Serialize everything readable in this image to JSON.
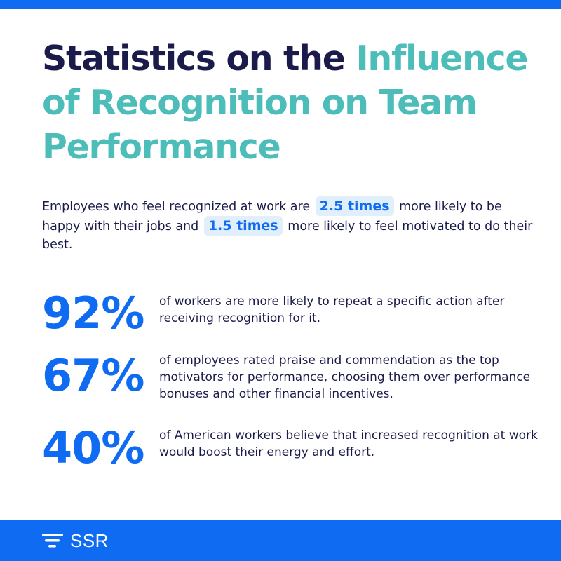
{
  "title": {
    "part1": "Statistics on the ",
    "part2": "Influence of Recognition on Team Performance"
  },
  "intro": {
    "t1": "Employees who feel recognized at work are ",
    "h1": "2.5 times",
    "t2": " more likely to be happy with their jobs and ",
    "h2": "1.5 times",
    "t3": " more likely to feel motivated to do their best."
  },
  "stats": [
    {
      "value": "92%",
      "text": "of workers are more likely to repeat a specific action after receiving recognition for it."
    },
    {
      "value": "67%",
      "text": "of employees rated praise and commendation as the top motivators for performance, choosing them over performance bonuses and other financial incentives."
    },
    {
      "value": "40%",
      "text": "of American workers believe that increased recognition at work would boost their energy and effort."
    }
  ],
  "footer": {
    "logo_text": "SSR",
    "logo_icon": "ssr-logo-icon"
  },
  "colors": {
    "accent_blue": "#0F6CF2",
    "teal": "#4DBDBA",
    "navy": "#1B1B4B",
    "highlight_bg": "#E1EEFC"
  }
}
